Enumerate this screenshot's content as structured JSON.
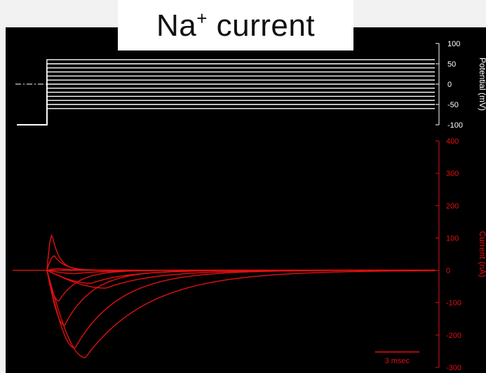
{
  "title": {
    "main": "Na",
    "superscript": "+",
    "rest": " current"
  },
  "colors": {
    "background": "#000000",
    "voltage": "#ffffff",
    "current": "#e01010",
    "page": "#f2f2f2"
  },
  "chart_data": [
    {
      "type": "line",
      "name": "voltage-steps",
      "ylabel": "Potential (mV)",
      "ylim": [
        -100,
        100
      ],
      "yticks": [
        "100",
        "50",
        "0",
        "-50",
        "-100"
      ],
      "yticks_values": [
        100,
        50,
        0,
        -50,
        -100
      ],
      "holding_potential": -100,
      "step_potentials": [
        -60,
        -50,
        -40,
        -30,
        -20,
        -10,
        0,
        10,
        20,
        30,
        40,
        50,
        60
      ],
      "step_onset_ms": 0.8,
      "zero_reference_line": "dash-dot"
    },
    {
      "type": "line",
      "name": "sodium-currents",
      "ylabel": "Current (nA)",
      "ylim": [
        -300,
        400
      ],
      "yticks": [
        "400",
        "300",
        "200",
        "100",
        "0",
        "-100",
        "-200",
        "-300"
      ],
      "yticks_values": [
        400,
        300,
        200,
        100,
        0,
        -100,
        -200,
        -300
      ],
      "xlim_ms": [
        0,
        27
      ],
      "series": [
        {
          "peak": 110,
          "peak_ms": 0.35,
          "tau_ms": 0.5
        },
        {
          "peak": 45,
          "peak_ms": 0.5,
          "tau_ms": 0.7
        },
        {
          "peak": 5,
          "peak_ms": 0.8,
          "tau_ms": 1.0
        },
        {
          "peak": -10,
          "peak_ms": 2.0,
          "tau_ms": 2.0
        },
        {
          "peak": -40,
          "peak_ms": 3.0,
          "tau_ms": 2.5
        },
        {
          "peak": -55,
          "peak_ms": 4.0,
          "tau_ms": 3.2
        },
        {
          "peak": -95,
          "peak_ms": 0.8,
          "tau_ms": 1.3
        },
        {
          "peak": -170,
          "peak_ms": 1.2,
          "tau_ms": 1.9
        },
        {
          "peak": -240,
          "peak_ms": 1.9,
          "tau_ms": 3.0
        },
        {
          "peak": -270,
          "peak_ms": 2.6,
          "tau_ms": 4.3
        }
      ],
      "scale_bar": {
        "label": "3 msec",
        "length_ms": 3
      }
    }
  ]
}
